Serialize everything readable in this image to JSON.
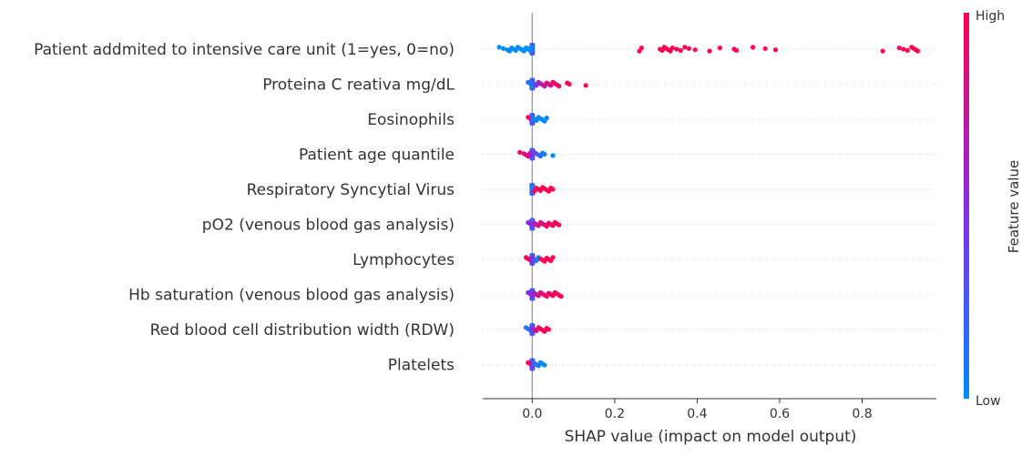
{
  "chart_data": {
    "type": "scatter",
    "subtype": "shap-beeswarm",
    "xlabel": "SHAP value (impact on model output)",
    "xlim": [
      -0.12,
      0.98
    ],
    "xticks": [
      0.0,
      0.2,
      0.4,
      0.6,
      0.8
    ],
    "xtick_labels": [
      "0.0",
      "0.2",
      "0.4",
      "0.6",
      "0.8"
    ],
    "grid": false,
    "colorbar": {
      "label": "Feature value",
      "high_label": "High",
      "low_label": "Low",
      "high_color": "#ff0052",
      "mid_color": "#8a2be2",
      "low_color": "#008bfb"
    },
    "features": [
      {
        "name": "Patient addmited to intensive care unit (1=yes, 0=no)",
        "points": [
          [
            -0.08,
            0
          ],
          [
            -0.07,
            0
          ],
          [
            -0.06,
            0
          ],
          [
            -0.055,
            0
          ],
          [
            -0.05,
            0
          ],
          [
            -0.045,
            0
          ],
          [
            -0.04,
            0
          ],
          [
            -0.035,
            0
          ],
          [
            -0.03,
            0
          ],
          [
            -0.025,
            0
          ],
          [
            -0.02,
            0
          ],
          [
            -0.015,
            0
          ],
          [
            -0.01,
            0
          ],
          [
            -0.005,
            0
          ],
          [
            0.0,
            0
          ],
          [
            -0.01,
            0
          ],
          [
            -0.02,
            0
          ],
          [
            0.26,
            1
          ],
          [
            0.265,
            1
          ],
          [
            0.31,
            1
          ],
          [
            0.315,
            1
          ],
          [
            0.32,
            1
          ],
          [
            0.325,
            1
          ],
          [
            0.33,
            1
          ],
          [
            0.335,
            1
          ],
          [
            0.34,
            1
          ],
          [
            0.35,
            1
          ],
          [
            0.36,
            1
          ],
          [
            0.37,
            1
          ],
          [
            0.38,
            1
          ],
          [
            0.395,
            1
          ],
          [
            0.43,
            1
          ],
          [
            0.455,
            1
          ],
          [
            0.49,
            1
          ],
          [
            0.495,
            1
          ],
          [
            0.535,
            1
          ],
          [
            0.565,
            1
          ],
          [
            0.59,
            1
          ],
          [
            0.85,
            1
          ],
          [
            0.89,
            1
          ],
          [
            0.9,
            1
          ],
          [
            0.91,
            1
          ],
          [
            0.92,
            1
          ],
          [
            0.925,
            1
          ],
          [
            0.93,
            1
          ],
          [
            0.935,
            1
          ]
        ]
      },
      {
        "name": "Proteina C reativa mg/dL",
        "points": [
          [
            -0.01,
            0.2
          ],
          [
            -0.005,
            0.1
          ],
          [
            0.0,
            0.0
          ],
          [
            0.0,
            0.05
          ],
          [
            0.002,
            0.1
          ],
          [
            0.005,
            0.3
          ],
          [
            0.01,
            0.5
          ],
          [
            0.015,
            0.6
          ],
          [
            0.02,
            0.65
          ],
          [
            0.025,
            0.7
          ],
          [
            0.03,
            0.75
          ],
          [
            0.035,
            0.8
          ],
          [
            0.04,
            0.85
          ],
          [
            0.045,
            0.85
          ],
          [
            0.05,
            0.9
          ],
          [
            0.055,
            0.9
          ],
          [
            0.06,
            0.92
          ],
          [
            0.065,
            0.94
          ],
          [
            0.085,
            0.96
          ],
          [
            0.09,
            0.97
          ],
          [
            0.13,
            1.0
          ]
        ]
      },
      {
        "name": "Eosinophils",
        "points": [
          [
            -0.01,
            1.0
          ],
          [
            -0.005,
            0.9
          ],
          [
            0.0,
            0.5
          ],
          [
            0.0,
            0.3
          ],
          [
            0.002,
            0.1
          ],
          [
            0.005,
            0.05
          ],
          [
            0.01,
            0.0
          ],
          [
            0.015,
            0.0
          ],
          [
            0.02,
            0.02
          ],
          [
            0.025,
            0.0
          ],
          [
            0.03,
            0.0
          ],
          [
            0.035,
            0.05
          ]
        ]
      },
      {
        "name": "Patient age quantile",
        "points": [
          [
            -0.03,
            0.9
          ],
          [
            -0.02,
            0.95
          ],
          [
            -0.015,
            0.85
          ],
          [
            -0.01,
            0.8
          ],
          [
            -0.005,
            0.7
          ],
          [
            0.0,
            0.6
          ],
          [
            0.0,
            0.5
          ],
          [
            0.005,
            0.4
          ],
          [
            0.01,
            0.3
          ],
          [
            0.015,
            0.2
          ],
          [
            0.02,
            0.15
          ],
          [
            0.025,
            0.1
          ],
          [
            0.03,
            0.05
          ],
          [
            0.05,
            0.0
          ]
        ]
      },
      {
        "name": "Respiratory Syncytial Virus",
        "points": [
          [
            0.0,
            0.0
          ],
          [
            0.0,
            0.0
          ],
          [
            0.002,
            0.1
          ],
          [
            0.005,
            0.9
          ],
          [
            0.01,
            1.0
          ],
          [
            0.015,
            1.0
          ],
          [
            0.02,
            1.0
          ],
          [
            0.025,
            1.0
          ],
          [
            0.03,
            1.0
          ],
          [
            0.035,
            1.0
          ],
          [
            0.04,
            1.0
          ],
          [
            0.045,
            1.0
          ],
          [
            0.05,
            1.0
          ]
        ]
      },
      {
        "name": "pO2 (venous blood gas analysis)",
        "points": [
          [
            -0.01,
            0.5
          ],
          [
            -0.005,
            0.5
          ],
          [
            0.0,
            0.5
          ],
          [
            0.0,
            0.45
          ],
          [
            0.005,
            0.6
          ],
          [
            0.01,
            0.75
          ],
          [
            0.015,
            0.8
          ],
          [
            0.02,
            0.85
          ],
          [
            0.025,
            0.9
          ],
          [
            0.03,
            0.9
          ],
          [
            0.035,
            0.92
          ],
          [
            0.04,
            0.94
          ],
          [
            0.045,
            0.95
          ],
          [
            0.05,
            0.96
          ],
          [
            0.055,
            0.97
          ],
          [
            0.06,
            0.98
          ],
          [
            0.065,
            1.0
          ]
        ]
      },
      {
        "name": "Lymphocytes",
        "points": [
          [
            -0.015,
            1.0
          ],
          [
            -0.01,
            0.95
          ],
          [
            -0.005,
            0.9
          ],
          [
            0.0,
            0.5
          ],
          [
            0.0,
            0.6
          ],
          [
            0.005,
            0.3
          ],
          [
            0.01,
            0.1
          ],
          [
            0.015,
            0.0
          ],
          [
            0.02,
            0.9
          ],
          [
            0.025,
            0.95
          ],
          [
            0.03,
            1.0
          ],
          [
            0.035,
            1.0
          ],
          [
            0.04,
            1.0
          ],
          [
            0.045,
            1.0
          ],
          [
            0.05,
            1.0
          ]
        ]
      },
      {
        "name": "Hb saturation (venous blood gas analysis)",
        "points": [
          [
            -0.01,
            0.5
          ],
          [
            -0.005,
            0.5
          ],
          [
            0.0,
            0.5
          ],
          [
            0.0,
            0.45
          ],
          [
            0.005,
            0.6
          ],
          [
            0.01,
            0.75
          ],
          [
            0.015,
            0.8
          ],
          [
            0.02,
            0.85
          ],
          [
            0.025,
            0.9
          ],
          [
            0.03,
            0.9
          ],
          [
            0.035,
            0.92
          ],
          [
            0.04,
            0.94
          ],
          [
            0.045,
            0.95
          ],
          [
            0.05,
            0.96
          ],
          [
            0.055,
            0.97
          ],
          [
            0.06,
            0.98
          ],
          [
            0.065,
            1.0
          ],
          [
            0.07,
            1.0
          ]
        ]
      },
      {
        "name": "Red blood cell distribution width (RDW)",
        "points": [
          [
            -0.015,
            0.1
          ],
          [
            -0.01,
            0.1
          ],
          [
            -0.005,
            0.2
          ],
          [
            0.0,
            0.3
          ],
          [
            0.0,
            0.5
          ],
          [
            0.005,
            0.7
          ],
          [
            0.01,
            0.85
          ],
          [
            0.015,
            0.9
          ],
          [
            0.02,
            0.95
          ],
          [
            0.025,
            1.0
          ],
          [
            0.03,
            1.0
          ],
          [
            0.035,
            1.0
          ],
          [
            0.04,
            1.0
          ]
        ]
      },
      {
        "name": "Platelets",
        "points": [
          [
            -0.01,
            1.0
          ],
          [
            -0.005,
            0.9
          ],
          [
            0.0,
            0.5
          ],
          [
            0.0,
            0.4
          ],
          [
            0.005,
            0.2
          ],
          [
            0.01,
            0.1
          ],
          [
            0.015,
            0.05
          ],
          [
            0.02,
            0.0
          ],
          [
            0.025,
            0.0
          ],
          [
            0.03,
            0.0
          ]
        ]
      }
    ]
  }
}
